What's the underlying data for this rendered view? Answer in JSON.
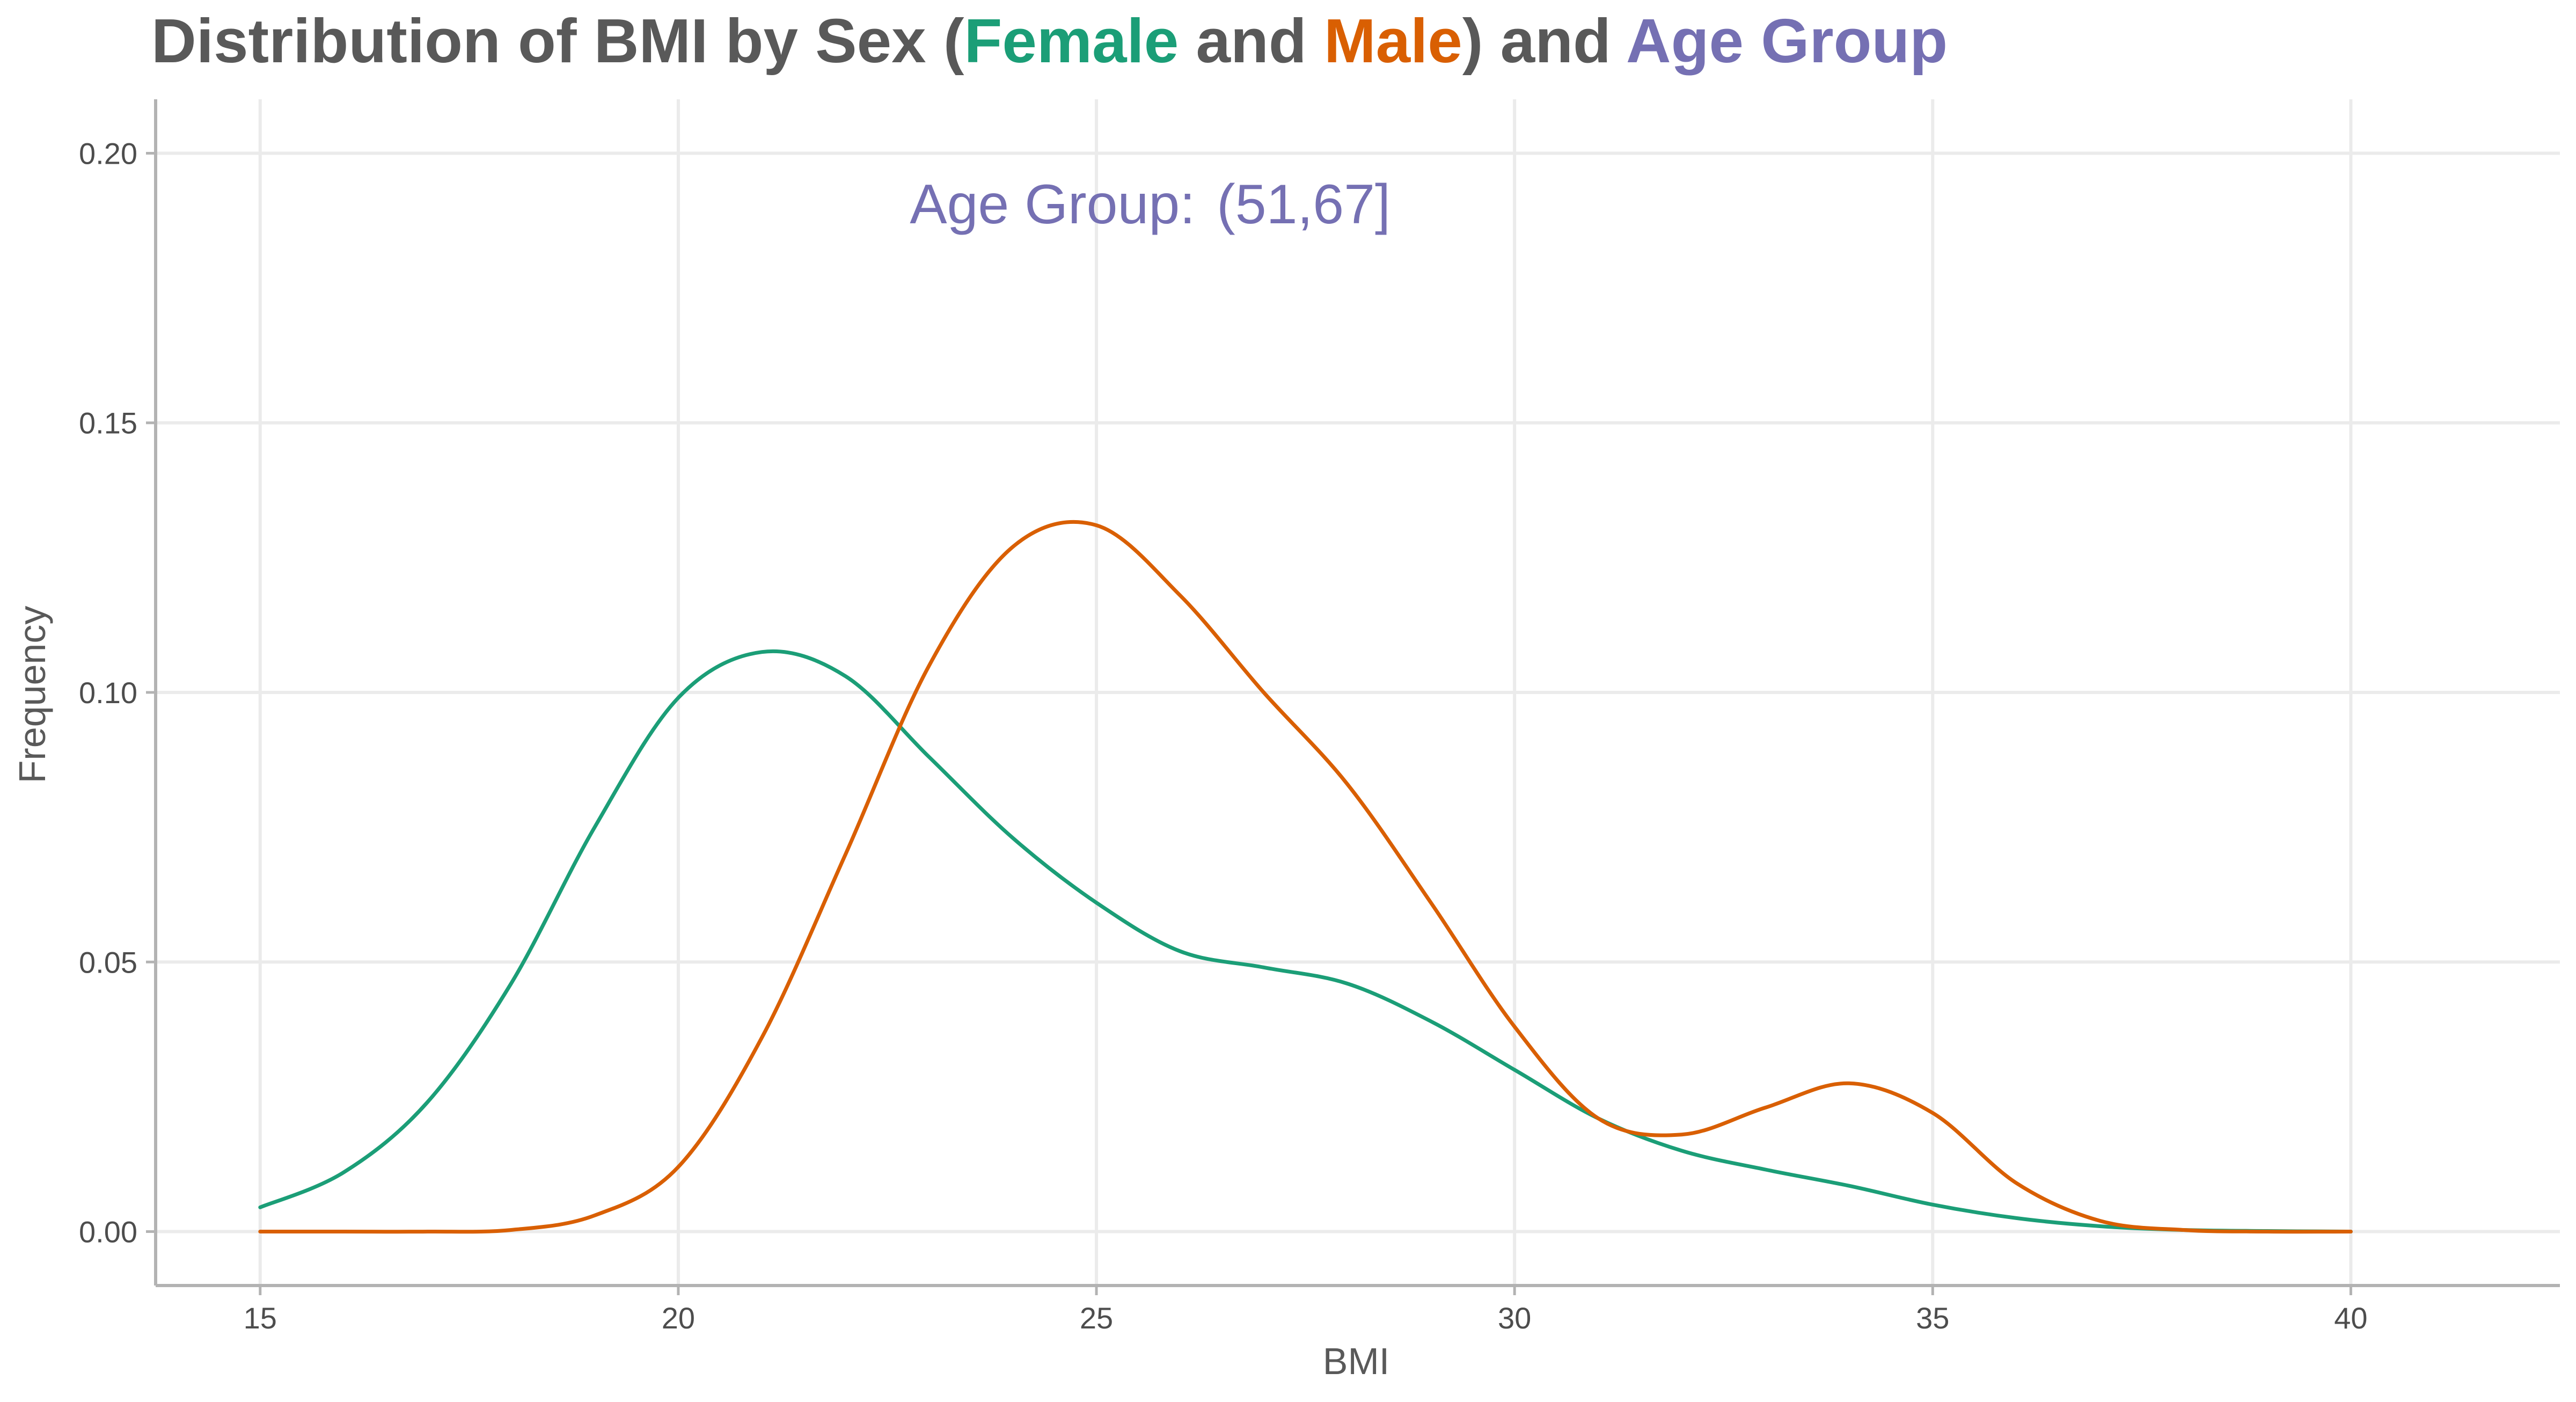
{
  "chart_data": {
    "type": "line",
    "title": {
      "prefix": "Distribution of BMI by Sex (",
      "female_word": "Female",
      "and1": " and ",
      "male_word": "Male",
      "and2": ") and ",
      "age_word": "Age Group"
    },
    "xlabel": "BMI",
    "ylabel": "Frequency",
    "xlim": [
      13.75,
      42.5
    ],
    "ylim": [
      -0.01,
      0.21
    ],
    "xticks": [
      15,
      20,
      25,
      30,
      35,
      40
    ],
    "yticks": [
      0.0,
      0.05,
      0.1,
      0.15,
      0.2
    ],
    "xtick_labels": [
      "15",
      "20",
      "25",
      "30",
      "35",
      "40"
    ],
    "ytick_labels": [
      "0.00",
      "0.05",
      "0.10",
      "0.15",
      "0.20"
    ],
    "annotation": {
      "label": "Age Group:",
      "value": "(51,67]",
      "x": 25,
      "y": 0.19
    },
    "colors": {
      "female": "#1b9e77",
      "male": "#d95f02",
      "age": "#7570b3",
      "text": "#595959",
      "grid": "#ebebeb",
      "axis": "#b3b3b3"
    },
    "series": [
      {
        "name": "Female",
        "x": [
          15,
          16,
          17,
          18,
          19,
          20,
          21,
          22,
          23,
          24,
          25,
          26,
          27,
          28,
          29,
          30,
          31,
          32,
          33,
          34,
          35,
          36,
          37,
          38,
          39,
          40
        ],
        "values": [
          0.0045,
          0.011,
          0.024,
          0.046,
          0.075,
          0.099,
          0.1075,
          0.103,
          0.088,
          0.073,
          0.061,
          0.052,
          0.049,
          0.046,
          0.039,
          0.03,
          0.021,
          0.015,
          0.0115,
          0.0085,
          0.005,
          0.0025,
          0.001,
          0.0003,
          0.0001,
          0.0
        ]
      },
      {
        "name": "Male",
        "x": [
          15,
          16,
          17,
          18,
          19,
          20,
          21,
          22,
          23,
          24,
          25,
          26,
          27,
          28,
          29,
          30,
          31,
          32,
          33,
          34,
          35,
          36,
          37,
          38,
          39,
          40
        ],
        "values": [
          0.0,
          0.0,
          0.0,
          0.0003,
          0.003,
          0.012,
          0.036,
          0.07,
          0.105,
          0.127,
          0.131,
          0.118,
          0.1,
          0.083,
          0.061,
          0.038,
          0.021,
          0.018,
          0.023,
          0.0275,
          0.022,
          0.009,
          0.002,
          0.0003,
          0.0,
          0.0
        ]
      }
    ]
  }
}
